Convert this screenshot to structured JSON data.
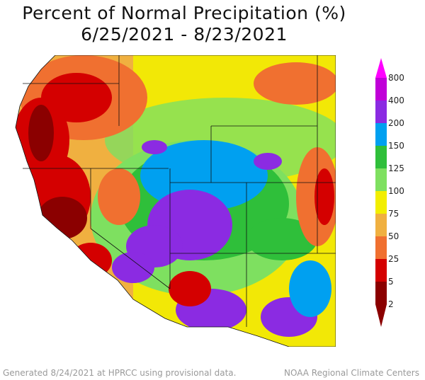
{
  "title": {
    "line1": "Percent of Normal Precipitation (%)",
    "line2": "6/25/2021 - 8/23/2021"
  },
  "legend": {
    "tick_labels": [
      "800",
      "400",
      "200",
      "150",
      "125",
      "100",
      "75",
      "50",
      "25",
      "5",
      "2"
    ],
    "bins": [
      {
        "from": 2,
        "to": 5,
        "color": "#8b0000"
      },
      {
        "from": 5,
        "to": 25,
        "color": "#d40000"
      },
      {
        "from": 25,
        "to": 50,
        "color": "#f07030"
      },
      {
        "from": 50,
        "to": 75,
        "color": "#f0b040"
      },
      {
        "from": 75,
        "to": 100,
        "color": "#f2ee00"
      },
      {
        "from": 100,
        "to": 125,
        "color": "#7ee060"
      },
      {
        "from": 125,
        "to": 150,
        "color": "#2fbf3a"
      },
      {
        "from": 150,
        "to": 200,
        "color": "#00a0f0"
      },
      {
        "from": 200,
        "to": 400,
        "color": "#8b2be2"
      },
      {
        "from": 400,
        "to": 800,
        "color": "#c000d8"
      }
    ],
    "top_arrow_color": "#ff00ff",
    "bottom_arrow_color": "#8b0000"
  },
  "footer": {
    "left": "Generated 8/24/2021 at HPRCC using provisional data.",
    "right": "NOAA Regional Climate Centers"
  }
}
